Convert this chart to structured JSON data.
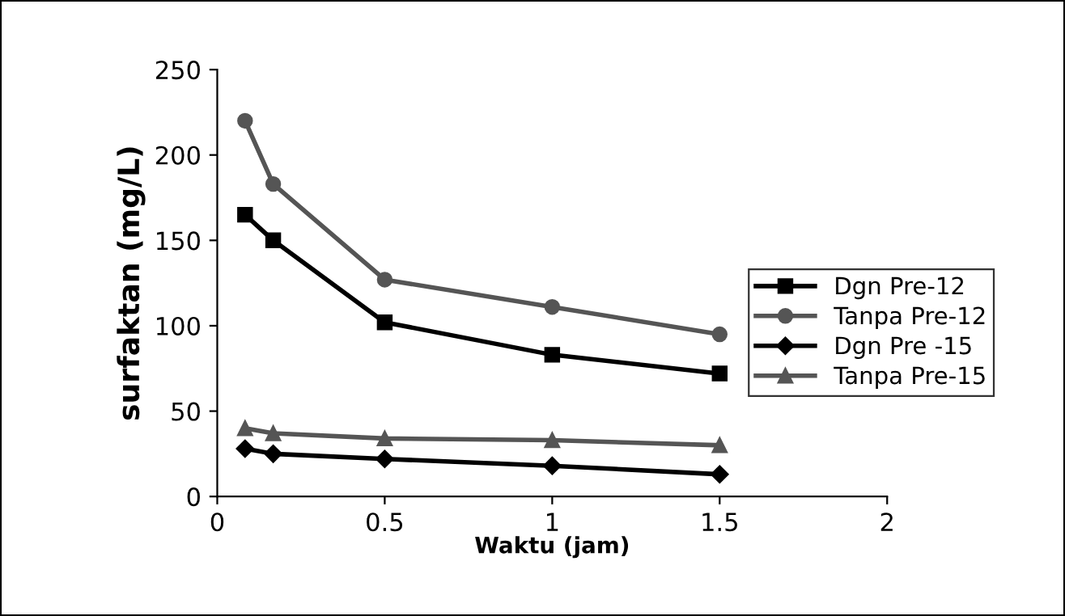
{
  "chart_data": {
    "type": "line",
    "xlabel": "Waktu (jam)",
    "ylabel": "surfaktan (mg/L)",
    "x": [
      0.083,
      0.167,
      0.5,
      1,
      1.5
    ],
    "series": [
      {
        "name": "Dgn Pre-12",
        "color": "#000000",
        "marker": "square",
        "values": [
          165,
          150,
          102,
          83,
          72
        ]
      },
      {
        "name": "Tanpa Pre-12",
        "color": "#555555",
        "marker": "circle",
        "values": [
          220,
          183,
          127,
          111,
          95
        ]
      },
      {
        "name": "Dgn Pre -15",
        "color": "#000000",
        "marker": "diamond",
        "values": [
          28,
          25,
          22,
          18,
          13
        ]
      },
      {
        "name": "Tanpa Pre-15",
        "color": "#555555",
        "marker": "triangle",
        "values": [
          40,
          37,
          34,
          33,
          30
        ]
      }
    ],
    "xlim": [
      0,
      2
    ],
    "xticks": [
      0,
      0.5,
      1,
      1.5,
      2
    ],
    "ylim": [
      0,
      250
    ],
    "yticks": [
      0,
      50,
      100,
      150,
      200,
      250
    ],
    "grid": false,
    "legend": "right",
    "line_style": "solid"
  }
}
